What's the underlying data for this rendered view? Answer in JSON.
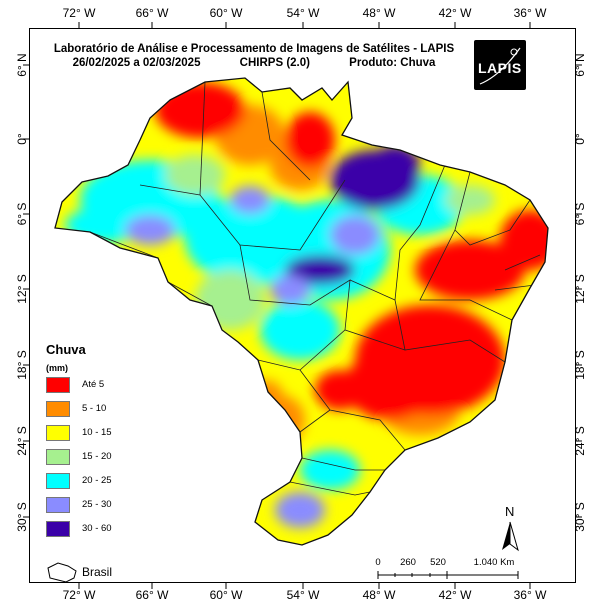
{
  "header": {
    "line1": "Laboratório de Análise e Processamento de Imagens de Satélites - LAPIS",
    "period": "26/02/2025  a 02/03/2025",
    "source": "CHIRPS (2.0)",
    "product": "Produto: Chuva"
  },
  "logo": {
    "text": "LAPIS"
  },
  "lon_labels": [
    "72° W",
    "66° W",
    "60° W",
    "54° W",
    "48° W",
    "42° W",
    "36° W"
  ],
  "lat_labels": [
    "6° N",
    "0°",
    "6° S",
    "12° S",
    "18° S",
    "24° S",
    "30° S"
  ],
  "legend": {
    "title": "Chuva",
    "unit": "(mm)",
    "items": [
      {
        "label": "Até 5",
        "color": "#ff0000"
      },
      {
        "label": "5 - 10",
        "color": "#ff8c00"
      },
      {
        "label": "10 - 15",
        "color": "#ffff00"
      },
      {
        "label": "15 - 20",
        "color": "#a6f08f"
      },
      {
        "label": "20 - 25",
        "color": "#00ffff"
      },
      {
        "label": "25 - 30",
        "color": "#8a8cff"
      },
      {
        "label": "30 - 60",
        "color": "#3a00a8"
      }
    ]
  },
  "inset_label": "Brasil",
  "scale": {
    "labels": [
      "0",
      "260",
      "520",
      "1.040 Km"
    ]
  },
  "north_label": "N"
}
